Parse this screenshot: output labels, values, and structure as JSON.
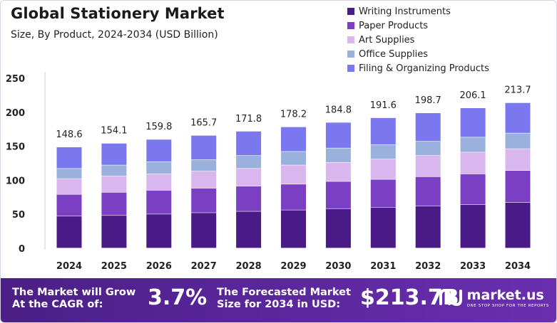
{
  "header": {
    "title": "Global Stationery Market",
    "subtitle": "Size, By Product, 2024-2034 (USD Billion)"
  },
  "chart_data": {
    "type": "bar",
    "stacked": true,
    "categories": [
      "2024",
      "2025",
      "2026",
      "2027",
      "2028",
      "2029",
      "2030",
      "2031",
      "2032",
      "2033",
      "2034"
    ],
    "totals": [
      "148.6",
      "154.1",
      "159.8",
      "165.7",
      "171.8",
      "178.2",
      "184.8",
      "191.6",
      "198.7",
      "206.1",
      "213.7"
    ],
    "series": [
      {
        "name": "Writing Instruments",
        "color": "#4a1a86",
        "values": [
          47,
          48,
          50,
          52,
          54,
          56,
          58,
          60,
          62,
          64,
          67
        ]
      },
      {
        "name": "Paper Products",
        "color": "#7b3fc4",
        "values": [
          32,
          34,
          35,
          36,
          37,
          38,
          40,
          41,
          43,
          45,
          47
        ]
      },
      {
        "name": "Art Supplies",
        "color": "#d9b6ee",
        "values": [
          23,
          24,
          24,
          25,
          26,
          28,
          28,
          30,
          31,
          32,
          32
        ]
      },
      {
        "name": "Office Supplies",
        "color": "#9ab1dd",
        "values": [
          15,
          16,
          18,
          17,
          19,
          20,
          21,
          21,
          21,
          22,
          23
        ]
      },
      {
        "name": "Filing & Organizing Products",
        "color": "#7b77ee",
        "values": [
          31.6,
          32.1,
          32.8,
          35.7,
          35.8,
          36.2,
          37.8,
          39.6,
          41.7,
          43.1,
          44.7
        ]
      }
    ],
    "yticks": [
      0,
      50,
      100,
      150,
      200,
      250
    ],
    "ylim": [
      0,
      250
    ],
    "grid": false,
    "legend": "top-right"
  },
  "footer": {
    "cagr_label_1": "The Market will Grow",
    "cagr_label_2": "At the CAGR of:",
    "cagr_value": "3.7%",
    "forecast_label_1": "The Forecasted Market",
    "forecast_label_2": "Size for 2034 in USD:",
    "forecast_value": "$213.7B",
    "brand_name": "market.us",
    "brand_tagline": "ONE STOP SHOP FOR THE REPORTS"
  }
}
